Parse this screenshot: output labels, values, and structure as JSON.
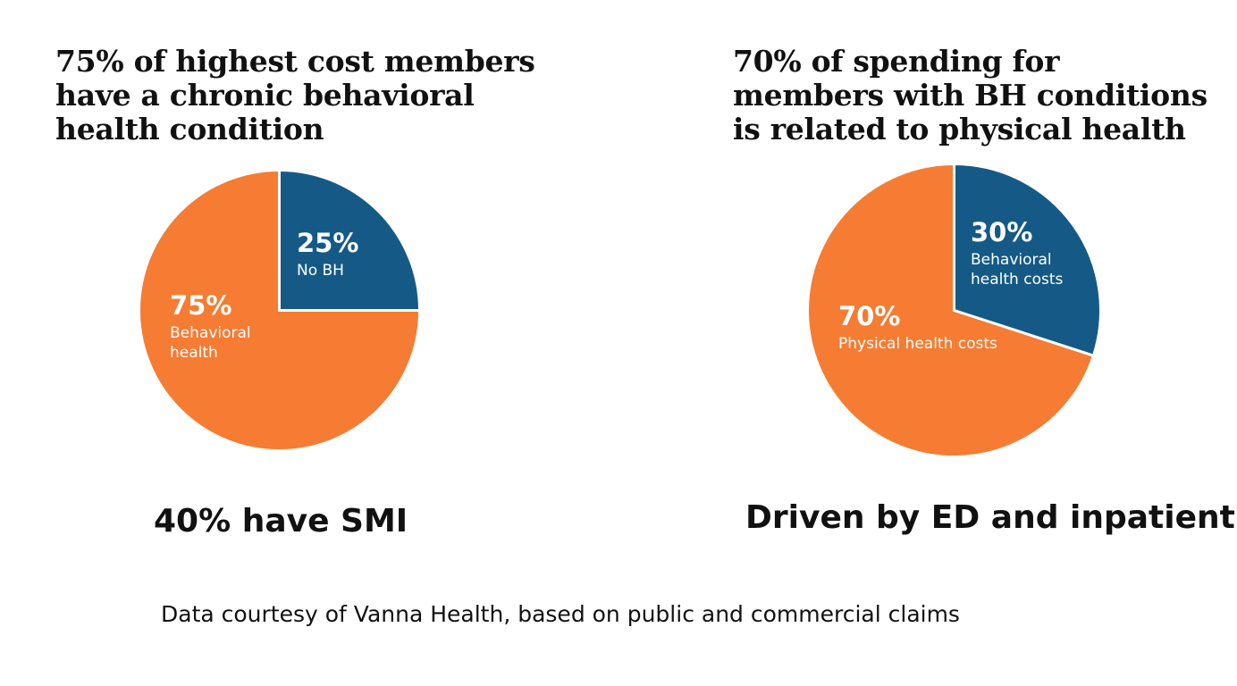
{
  "chart_data": [
    {
      "type": "pie",
      "title_lines": [
        "75% of highest cost members",
        "have a chronic behavioral",
        "health condition"
      ],
      "slices": [
        {
          "name": "No BH",
          "label_lines": [
            "No BH"
          ],
          "pct_label": "25%",
          "value": 25,
          "color": "#155a86"
        },
        {
          "name": "Behavioral health",
          "label_lines": [
            "Behavioral",
            "health"
          ],
          "pct_label": "75%",
          "value": 75,
          "color": "#f57c32"
        }
      ],
      "note": "40% have SMI"
    },
    {
      "type": "pie",
      "title_lines": [
        "70% of spending for",
        "members with BH conditions",
        "is related to physical health"
      ],
      "slices": [
        {
          "name": "Behavioral health costs",
          "label_lines": [
            "Behavioral",
            "health costs"
          ],
          "pct_label": "30%",
          "value": 30,
          "color": "#155a86"
        },
        {
          "name": "Physical health costs",
          "label_lines": [
            "Physical health costs"
          ],
          "pct_label": "70%",
          "value": 70,
          "color": "#f57c32"
        }
      ],
      "note": "Driven by ED and inpatient"
    }
  ],
  "footer": "Data courtesy of Vanna Health, based on public and commercial claims"
}
